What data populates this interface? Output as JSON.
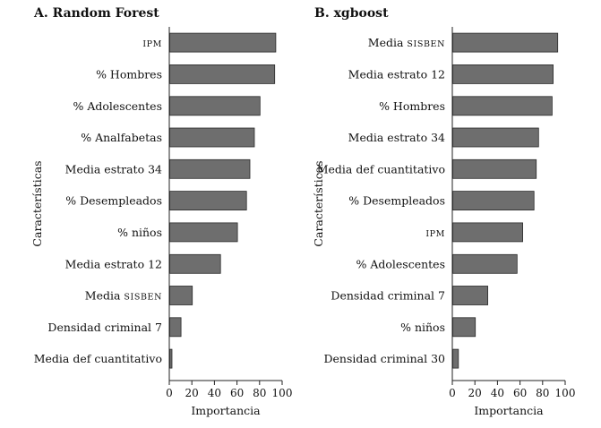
{
  "colors": {
    "bar": "#6e6e6e",
    "axis": "#222222",
    "text": "#111111",
    "background": "#ffffff"
  },
  "chart_data": [
    {
      "type": "bar",
      "orientation": "horizontal",
      "title": "A. Random Forest",
      "xlabel": "Importancia",
      "ylabel": "Características",
      "xlim": [
        0,
        100
      ],
      "xticks": [
        0,
        20,
        40,
        60,
        80,
        100
      ],
      "grid": false,
      "categories": [
        {
          "text": "IPM",
          "smallcaps": true
        },
        {
          "text": "% Hombres"
        },
        {
          "text": "% Adolescentes"
        },
        {
          "text": "% Analfabetas"
        },
        {
          "text": "Media estrato 34"
        },
        {
          "text": "% Desempleados"
        },
        {
          "text": "% niños"
        },
        {
          "text": "Media estrato 12"
        },
        {
          "prefix": "Media ",
          "text": "SISBEN",
          "smallcaps": true
        },
        {
          "text": "Densidad criminal 7"
        },
        {
          "text": "Media def cuantitativo"
        }
      ],
      "values": [
        94,
        93,
        80,
        75,
        71,
        68,
        60,
        45,
        20,
        10,
        2
      ]
    },
    {
      "type": "bar",
      "orientation": "horizontal",
      "title": "B. xgboost",
      "xlabel": "Importancia",
      "ylabel": "Características",
      "xlim": [
        0,
        100
      ],
      "xticks": [
        0,
        20,
        40,
        60,
        80,
        100
      ],
      "grid": false,
      "categories": [
        {
          "prefix": "Media ",
          "text": "SISBEN",
          "smallcaps": true
        },
        {
          "text": "Media estrato 12"
        },
        {
          "text": "% Hombres"
        },
        {
          "text": "Media estrato 34"
        },
        {
          "text": "Media def cuantitativo"
        },
        {
          "text": "% Desempleados"
        },
        {
          "text": "IPM",
          "smallcaps": true
        },
        {
          "text": "% Adolescentes"
        },
        {
          "text": "Densidad criminal 7"
        },
        {
          "text": "% niños"
        },
        {
          "text": "Densidad criminal 30"
        }
      ],
      "values": [
        93,
        89,
        88,
        76,
        74,
        72,
        62,
        57,
        31,
        20,
        5
      ]
    }
  ]
}
